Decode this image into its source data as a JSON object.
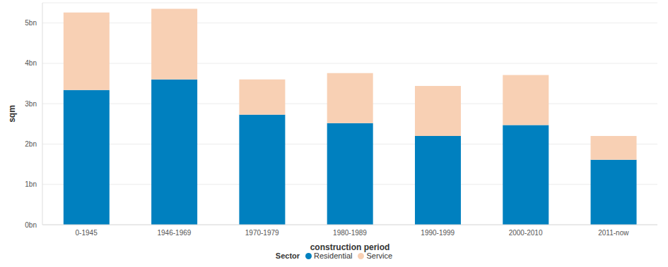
{
  "chart_data": {
    "type": "bar",
    "x_label": "construction period",
    "y_label": "sqm",
    "legend_title": "Sector",
    "categories": [
      "0-1945",
      "1946-1969",
      "1970-1979",
      "1980-1989",
      "1990-1999",
      "2000-2010",
      "2011-now"
    ],
    "series": [
      {
        "name": "Residential",
        "color": "#0080bf",
        "values": [
          3.34,
          3.6,
          2.73,
          2.52,
          2.2,
          2.47,
          1.61
        ]
      },
      {
        "name": "Service",
        "color": "#f8d0b4",
        "values": [
          1.92,
          1.75,
          0.87,
          1.24,
          1.24,
          1.24,
          0.59
        ]
      }
    ],
    "ylim": [
      0,
      5.5
    ],
    "yticks": [
      {
        "value": 0,
        "label": "0bn"
      },
      {
        "value": 1,
        "label": "1bn"
      },
      {
        "value": 2,
        "label": "2bn"
      },
      {
        "value": 3,
        "label": "3bn"
      },
      {
        "value": 4,
        "label": "4bn"
      },
      {
        "value": 5,
        "label": "5bn"
      }
    ],
    "stacked": true,
    "grid": true,
    "legend": "bottom"
  }
}
